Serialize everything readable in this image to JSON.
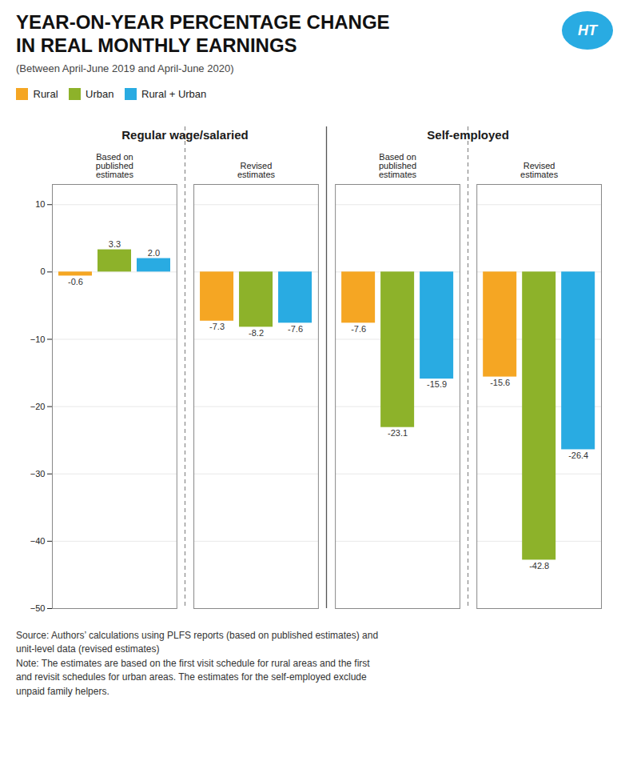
{
  "chart_data": {
    "type": "bar",
    "title": "YEAR-ON-YEAR PERCENTAGE CHANGE\nIN REAL MONTHLY EARNINGS",
    "subtitle": "(Between April-June 2019 and April-June 2020)",
    "categories": [
      "Based on\npublished\nestimates",
      "Revised\nestimates",
      "Based on\npublished\nestimates",
      "Revised\nestimates"
    ],
    "groups": [
      "Regular wage/salaried",
      "Self-employed"
    ],
    "series": [
      {
        "name": "Rural",
        "color": "#f5a623",
        "values": [
          -0.6,
          -7.3,
          -7.6,
          -15.6
        ],
        "value_labels": [
          "-0.6",
          "-7.3",
          "-7.6",
          "-15.6"
        ]
      },
      {
        "name": "Urban",
        "color": "#8db22a",
        "values": [
          3.3,
          -8.2,
          -23.1,
          -42.8
        ],
        "value_labels": [
          "3.3",
          "-8.2",
          "-23.1",
          "-42.8"
        ]
      },
      {
        "name": "Rural + Urban",
        "color": "#29abe2",
        "values": [
          2.0,
          -7.6,
          -15.9,
          -26.4
        ],
        "value_labels": [
          "2.0",
          "-7.6",
          "-15.9",
          "-26.4"
        ]
      }
    ],
    "ylim": [
      -50,
      13
    ],
    "yticks": [
      10,
      0,
      -10,
      -20,
      -30,
      -40,
      -50
    ],
    "grid": true,
    "legend": "top-left",
    "data_labels": true,
    "annotations": [
      "HT"
    ],
    "caption": "Source: Authors’ calculations using PLFS reports (based on published estimates) and\nunit-level data (revised estimates)\nNote: The estimates are based on the first visit schedule for rural areas and the first\nand revisit schedules for urban areas. The estimates for the self-employed exclude\nunpaid family helpers."
  }
}
